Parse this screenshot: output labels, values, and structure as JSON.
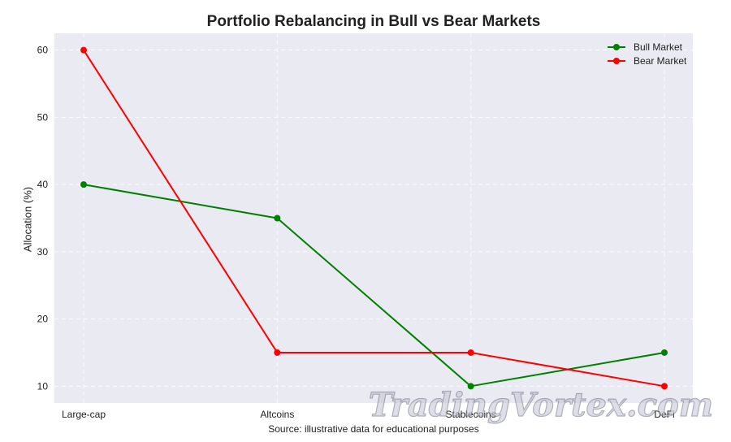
{
  "chart_data": {
    "type": "line",
    "title": "Portfolio Rebalancing in Bull vs Bear Markets",
    "xlabel": "",
    "ylabel": "Allocation (%)",
    "categories": [
      "Large-cap",
      "Altcoins",
      "Stablecoins",
      "DeFi"
    ],
    "series": [
      {
        "name": "Bull Market",
        "values": [
          40,
          35,
          10,
          15
        ],
        "color": "#008000"
      },
      {
        "name": "Bear Market",
        "values": [
          60,
          15,
          15,
          10
        ],
        "color": "#ff0000"
      }
    ],
    "yticks": [
      10,
      20,
      30,
      40,
      50,
      60
    ],
    "ylim": [
      7.5,
      62.5
    ],
    "grid": true,
    "legend_position": "top-right",
    "source": "Source: illustrative data for educational purposes"
  },
  "watermark": {
    "text": "TradingVortex.com"
  }
}
